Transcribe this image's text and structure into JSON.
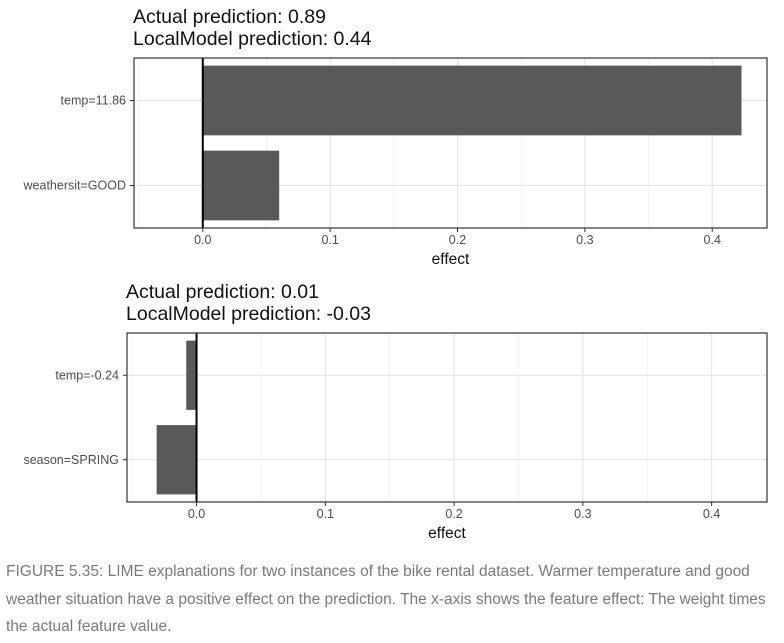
{
  "chart_data": [
    {
      "type": "bar",
      "orientation": "horizontal",
      "title_lines": [
        "Actual prediction: 0.89",
        "LocalModel prediction: 0.44"
      ],
      "categories": [
        "temp=11.86",
        "weathersit=GOOD"
      ],
      "values": [
        0.423,
        0.06
      ],
      "xlabel": "effect",
      "xlim": [
        -0.054,
        0.443
      ],
      "xticks": [
        0.0,
        0.1,
        0.2,
        0.3,
        0.4
      ],
      "xtick_labels": [
        "0.0",
        "0.1",
        "0.2",
        "0.3",
        "0.4"
      ],
      "grid": true,
      "bar_color": "#595959"
    },
    {
      "type": "bar",
      "orientation": "horizontal",
      "title_lines": [
        "Actual prediction: 0.01",
        "LocalModel prediction: -0.03"
      ],
      "categories": [
        "temp=-0.24",
        "season=SPRING"
      ],
      "values": [
        -0.008,
        -0.031
      ],
      "xlabel": "effect",
      "xlim": [
        -0.054,
        0.443
      ],
      "xticks": [
        0.0,
        0.1,
        0.2,
        0.3,
        0.4
      ],
      "xtick_labels": [
        "0.0",
        "0.1",
        "0.2",
        "0.3",
        "0.4"
      ],
      "grid": true,
      "bar_color": "#595959"
    }
  ],
  "caption": "FIGURE 5.35: LIME explanations for two instances of the bike rental dataset. Warmer temperature and good weather situation have a positive effect on the prediction. The x-axis shows the feature effect: The weight times the actual feature value."
}
